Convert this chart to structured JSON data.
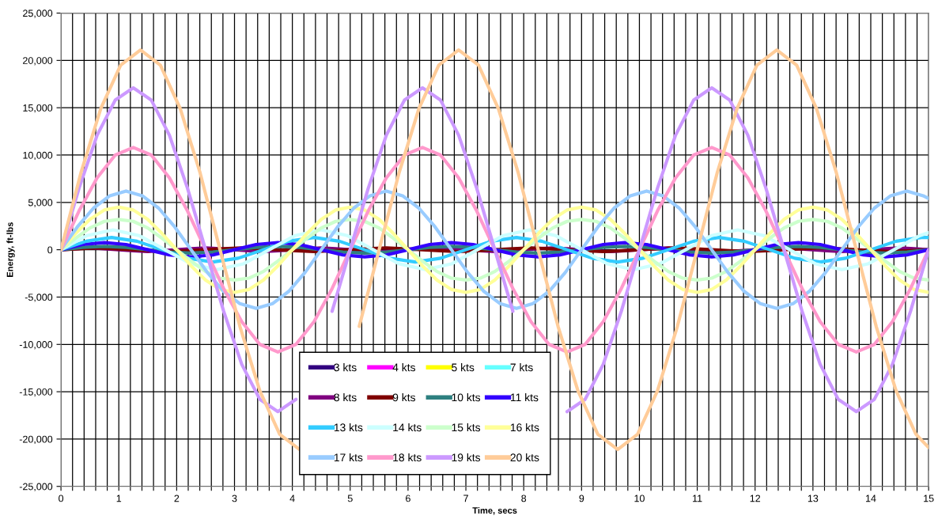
{
  "chart_data": {
    "type": "line",
    "xlabel": "Time, secs",
    "ylabel": "Energy, ft-lbs",
    "xlim": [
      0,
      15
    ],
    "ylim": [
      -25000,
      25000
    ],
    "xticks": [
      0,
      {
        "value": 0.2,
        "label": null
      },
      {
        "value": 0.4,
        "label": null
      },
      {
        "value": 0.6,
        "label": null
      },
      {
        "value": 0.8,
        "label": null
      },
      1,
      {
        "value": 1.2,
        "label": null
      },
      {
        "value": 1.4,
        "label": null
      },
      {
        "value": 1.6,
        "label": null
      },
      {
        "value": 1.8,
        "label": null
      },
      2,
      {
        "value": 2.2,
        "label": null
      },
      {
        "value": 2.4,
        "label": null
      },
      {
        "value": 2.6,
        "label": null
      },
      {
        "value": 2.8,
        "label": null
      },
      3,
      {
        "value": 3.2,
        "label": null
      },
      {
        "value": 3.4,
        "label": null
      },
      {
        "value": 3.6,
        "label": null
      },
      {
        "value": 3.8,
        "label": null
      },
      4,
      {
        "value": 4.2,
        "label": null
      },
      {
        "value": 4.4,
        "label": null
      },
      {
        "value": 4.6,
        "label": null
      },
      {
        "value": 4.8,
        "label": null
      },
      5,
      {
        "value": 5.2,
        "label": null
      },
      {
        "value": 5.4,
        "label": null
      },
      {
        "value": 5.6,
        "label": null
      },
      {
        "value": 5.8,
        "label": null
      },
      6,
      {
        "value": 6.2,
        "label": null
      },
      {
        "value": 6.4,
        "label": null
      },
      {
        "value": 6.6,
        "label": null
      },
      {
        "value": 6.8,
        "label": null
      },
      7,
      {
        "value": 7.2,
        "label": null
      },
      {
        "value": 7.4,
        "label": null
      },
      {
        "value": 7.6,
        "label": null
      },
      {
        "value": 7.8,
        "label": null
      },
      8,
      {
        "value": 8.2,
        "label": null
      },
      {
        "value": 8.4,
        "label": null
      },
      {
        "value": 8.6,
        "label": null
      },
      {
        "value": 8.8,
        "label": null
      },
      9,
      {
        "value": 9.2,
        "label": null
      },
      {
        "value": 9.4,
        "label": null
      },
      {
        "value": 9.6,
        "label": null
      },
      {
        "value": 9.8,
        "label": null
      },
      10,
      {
        "value": 10.2,
        "label": null
      },
      {
        "value": 10.4,
        "label": null
      },
      {
        "value": 10.6,
        "label": null
      },
      {
        "value": 10.8,
        "label": null
      },
      11,
      {
        "value": 11.2,
        "label": null
      },
      {
        "value": 11.4,
        "label": null
      },
      {
        "value": 11.6,
        "label": null
      },
      {
        "value": 11.8,
        "label": null
      },
      12,
      {
        "value": 12.2,
        "label": null
      },
      {
        "value": 12.4,
        "label": null
      },
      {
        "value": 12.6,
        "label": null
      },
      {
        "value": 12.8,
        "label": null
      },
      13,
      {
        "value": 13.2,
        "label": null
      },
      {
        "value": 13.4,
        "label": null
      },
      {
        "value": 13.6,
        "label": null
      },
      {
        "value": 13.8,
        "label": null
      },
      14,
      {
        "value": 14.2,
        "label": null
      },
      {
        "value": 14.4,
        "label": null
      },
      {
        "value": 14.6,
        "label": null
      },
      {
        "value": 14.8,
        "label": null
      },
      15
    ],
    "yticks": [
      {
        "value": -25000,
        "label": "-25,000"
      },
      {
        "value": -20000,
        "label": "-20,000"
      },
      {
        "value": -15000,
        "label": "-15,000"
      },
      {
        "value": -10000,
        "label": "-10,000"
      },
      {
        "value": -5000,
        "label": "-5,000"
      },
      0,
      {
        "value": 5000,
        "label": "5,000"
      },
      {
        "value": 10000,
        "label": "10,000"
      },
      {
        "value": 15000,
        "label": "15,000"
      },
      {
        "value": 20000,
        "label": "20,000"
      },
      {
        "value": 25000,
        "label": "25,000"
      }
    ],
    "grid": true,
    "legend": "bottom",
    "x": [
      0,
      0.25,
      0.5,
      0.75,
      1,
      1.25,
      1.5,
      1.75,
      2,
      2.25,
      2.5,
      2.75,
      3,
      3.25,
      3.5,
      3.75,
      4,
      4.25,
      4.5,
      4.75,
      5,
      5.25,
      5.5,
      5.75,
      6,
      6.25,
      6.5,
      6.75,
      7,
      7.25,
      7.5,
      7.75,
      8,
      8.25,
      8.5,
      8.75,
      9,
      9.25,
      9.5,
      9.75,
      10,
      10.25,
      10.5,
      10.75,
      11,
      11.25,
      11.5,
      11.75,
      12,
      12.25,
      12.5,
      12.75,
      13,
      13.25,
      13.5,
      13.75,
      14,
      14.25,
      14.5,
      14.75,
      15
    ],
    "series": [
      {
        "name": "3 kts",
        "color": "#330080",
        "values": [
          null,
          null,
          null,
          null,
          null,
          null,
          null,
          null,
          null,
          null,
          null,
          null,
          null,
          null,
          null,
          null,
          null,
          null,
          null,
          null,
          null,
          null,
          null,
          null,
          null,
          null,
          null,
          null,
          null,
          null,
          null,
          null,
          null,
          null,
          null,
          null,
          null,
          null,
          null,
          null,
          null,
          null,
          null,
          null,
          null,
          null,
          null,
          null,
          null,
          null,
          null,
          null,
          null,
          null,
          null,
          null,
          null,
          null,
          null,
          null,
          null
        ]
      },
      {
        "name": "4 kts",
        "color": "#ff00ff",
        "values": [
          null,
          null,
          null,
          null,
          null,
          null,
          null,
          null,
          null,
          null,
          null,
          null,
          null,
          null,
          null,
          null,
          null,
          null,
          null,
          null,
          null,
          null,
          null,
          null,
          null,
          null,
          null,
          null,
          null,
          null,
          null,
          null,
          null,
          null,
          null,
          null,
          null,
          null,
          null,
          null,
          null,
          null,
          null,
          null,
          null,
          null,
          null,
          null,
          null,
          null,
          null,
          null,
          null,
          null,
          null,
          null,
          null,
          null,
          null,
          null,
          null
        ]
      },
      {
        "name": "5 kts",
        "color": "#ffff00",
        "values": [
          null,
          null,
          null,
          null,
          null,
          null,
          null,
          null,
          null,
          null,
          null,
          null,
          null,
          null,
          null,
          null,
          null,
          null,
          null,
          null,
          null,
          null,
          null,
          null,
          null,
          null,
          null,
          null,
          null,
          null,
          null,
          null,
          null,
          null,
          null,
          null,
          null,
          null,
          null,
          null,
          null,
          null,
          null,
          null,
          null,
          null,
          null,
          null,
          null,
          null,
          null,
          null,
          null,
          null,
          null,
          null,
          null,
          null,
          null,
          null,
          null
        ]
      },
      {
        "name": "7 kts",
        "color": "#66ffff",
        "values": [
          null,
          null,
          null,
          null,
          null,
          null,
          null,
          null,
          null,
          null,
          null,
          null,
          null,
          null,
          null,
          null,
          null,
          null,
          null,
          null,
          null,
          null,
          null,
          null,
          null,
          null,
          null,
          null,
          null,
          null,
          null,
          null,
          null,
          null,
          null,
          null,
          null,
          null,
          null,
          null,
          null,
          null,
          null,
          null,
          null,
          null,
          null,
          null,
          null,
          null,
          null,
          null,
          null,
          null,
          null,
          null,
          null,
          null,
          null,
          null,
          null
        ]
      },
      {
        "name": "8 kts",
        "color": "#800080",
        "values": [
          0,
          100,
          200,
          100,
          0,
          -100,
          -200,
          -100,
          0,
          100,
          200,
          100,
          0,
          -100,
          -200,
          -100,
          0,
          100,
          200,
          100,
          0,
          -100,
          -200,
          -100,
          0,
          100,
          200,
          100,
          0,
          -100,
          -200,
          -100,
          0,
          100,
          200,
          100,
          0,
          -100,
          -200,
          -100,
          0,
          100,
          200,
          100,
          0,
          -100,
          -200,
          -100,
          0,
          100,
          200,
          100,
          0,
          -100,
          -200,
          -100,
          0,
          100,
          200,
          100,
          0
        ]
      },
      {
        "name": "9 kts",
        "color": "#800000",
        "x": [
          0,
          0.3125,
          0.625,
          0.9375,
          1.25,
          1.5625,
          1.875,
          2.1875,
          2.5,
          2.8125,
          3.125,
          3.4375,
          3.75,
          4.0625,
          4.375,
          4.6875,
          5,
          5.3125,
          5.625,
          5.9375,
          6.25,
          6.5625,
          6.875,
          7.1875,
          7.5,
          7.8125,
          8.125,
          8.4375,
          8.75,
          9.0625,
          9.375,
          9.6875,
          10,
          10.3125,
          10.625,
          10.9375,
          11.25,
          11.5625,
          11.875,
          12.1875,
          12.5,
          12.8125,
          13.125,
          13.4375,
          13.75,
          14.0625,
          14.375,
          14.6875,
          15
        ],
        "values": [
          0,
          100,
          200,
          100,
          0,
          -100,
          -200,
          -100,
          0,
          100,
          200,
          100,
          0,
          -100,
          -200,
          -100,
          0,
          100,
          200,
          100,
          0,
          -100,
          -200,
          -100,
          0,
          100,
          200,
          100,
          0,
          -100,
          -200,
          -100,
          0,
          100,
          200,
          100,
          0,
          -100,
          -200,
          -100,
          0,
          100,
          200,
          100,
          0,
          -100,
          -200,
          -100,
          0
        ]
      },
      {
        "name": "10 kts",
        "color": "#2e8080",
        "x": [
          0,
          0.375,
          0.75,
          1.125,
          1.5,
          1.875,
          2.25,
          2.625,
          3,
          3.375,
          3.75,
          4.125,
          4.5,
          4.875,
          5.25,
          5.625,
          6,
          6.375,
          6.75,
          7.125,
          7.5,
          7.875,
          8.25,
          8.625,
          9,
          9.375,
          9.75,
          10.125,
          10.5,
          10.875,
          11.25,
          11.625,
          12,
          12.375,
          12.75,
          13.125,
          13.5,
          13.875,
          14.25,
          14.625,
          15
        ],
        "values": [
          0,
          250,
          350,
          250,
          0,
          -250,
          -350,
          -250,
          0,
          250,
          350,
          250,
          0,
          -250,
          -350,
          -250,
          0,
          250,
          350,
          250,
          0,
          -250,
          -350,
          -250,
          0,
          250,
          350,
          250,
          0,
          -250,
          -350,
          -250,
          0,
          250,
          350,
          250,
          0,
          -250,
          -350,
          -250,
          0
        ]
      },
      {
        "name": "11 kts",
        "color": "#3300ff",
        "x": [
          0,
          0.375,
          0.75,
          1.125,
          1.5,
          1.875,
          2.25,
          2.625,
          3,
          3.375,
          3.75,
          4.125,
          4.5,
          4.875,
          5.25,
          5.625,
          6,
          6.375,
          6.75,
          7.125,
          7.5,
          7.875,
          8.25,
          8.625,
          9,
          9.375,
          9.75,
          10.125,
          10.5,
          10.875,
          11.25,
          11.625,
          12,
          12.375,
          12.75,
          13.125,
          13.5,
          13.875,
          14.25,
          14.625,
          15
        ],
        "values": [
          0,
          550,
          750,
          550,
          0,
          -550,
          -750,
          -550,
          0,
          550,
          750,
          550,
          0,
          -550,
          -750,
          -550,
          0,
          550,
          750,
          550,
          0,
          -550,
          -750,
          -550,
          0,
          550,
          750,
          550,
          0,
          -550,
          -750,
          -550,
          0,
          550,
          750,
          550,
          0,
          -550,
          -750,
          -550,
          0
        ]
      },
      {
        "name": "13 kts",
        "color": "#33ccff",
        "x": [
          0,
          0.4375,
          0.875,
          1.3125,
          1.75,
          2.1875,
          2.625,
          3.0625,
          3.5,
          3.9375,
          4.375,
          4.8125,
          5.25,
          5.6875,
          6.125,
          6.5625,
          7,
          7.4375,
          7.875,
          8.3125,
          8.75,
          9.1875,
          9.625,
          10.0625,
          10.5,
          10.9375,
          11.375,
          11.8125,
          12.25,
          12.6875,
          13.125,
          13.5625,
          14,
          14.4375,
          14.875,
          15
        ],
        "values": [
          0,
          900,
          1300,
          900,
          0,
          -900,
          -1300,
          -900,
          0,
          900,
          1300,
          900,
          0,
          -900,
          -1300,
          -900,
          0,
          900,
          1300,
          900,
          0,
          -900,
          -1300,
          -900,
          0,
          900,
          1300,
          900,
          0,
          -900,
          -1300,
          -900,
          0,
          900,
          1300,
          1300
        ]
      },
      {
        "name": "14 kts",
        "color": "#ccffff",
        "x": [
          0,
          0.45,
          0.9,
          1.35,
          1.8,
          2.25,
          2.7,
          3.15,
          3.6,
          4.05,
          4.5,
          4.95,
          5.4,
          5.85,
          6.3,
          6.75,
          7.2,
          7.65,
          8.1,
          8.55,
          9,
          9.45,
          9.9,
          10.35,
          10.8,
          11.25,
          11.7,
          12.15,
          12.6,
          13.05,
          13.5,
          13.95,
          14.4,
          14.85,
          15
        ],
        "values": [
          0,
          1500,
          2100,
          1500,
          0,
          -1500,
          -2100,
          -1500,
          0,
          1500,
          2100,
          1500,
          0,
          -1500,
          -2100,
          -1500,
          0,
          1500,
          2100,
          1500,
          0,
          -1500,
          -2100,
          -1500,
          0,
          1500,
          2100,
          1500,
          0,
          -1500,
          -2100,
          -1500,
          0,
          1500,
          1800
        ]
      },
      {
        "name": "15 kts",
        "color": "#ccffcc",
        "values": [
          0,
          1200,
          2300,
          3000,
          3200,
          3000,
          2300,
          1200,
          0,
          -1200,
          -2300,
          -3000,
          -3200,
          -3000,
          -2300,
          -1200,
          0,
          1200,
          2300,
          3000,
          3200,
          3000,
          2300,
          1200,
          0,
          -1200,
          -2300,
          -3000,
          -3200,
          -3000,
          -2300,
          -1200,
          0,
          1200,
          2300,
          3000,
          3200,
          3000,
          2300,
          1200,
          0,
          -1200,
          -2300,
          -3000,
          -3200,
          -3000,
          -2300,
          -1200,
          0,
          1200,
          2300,
          3000,
          3200,
          3000,
          2300,
          1200,
          0,
          -1200,
          -2300,
          -3000,
          -3200
        ]
      },
      {
        "name": "16 kts",
        "color": "#ffff99",
        "values": [
          0,
          1700,
          3200,
          4200,
          4500,
          4200,
          3200,
          1700,
          0,
          -1700,
          -3200,
          -4200,
          -4500,
          -4200,
          -3200,
          -1700,
          0,
          1700,
          3200,
          4200,
          4500,
          4200,
          3200,
          1700,
          0,
          -1700,
          -3200,
          -4200,
          -4500,
          -4200,
          -3200,
          -1700,
          0,
          1700,
          3200,
          4200,
          4500,
          4200,
          3200,
          1700,
          0,
          -1700,
          -3200,
          -4200,
          -4500,
          -4200,
          -3200,
          -1700,
          0,
          1700,
          3200,
          4200,
          4500,
          4200,
          3200,
          1700,
          0,
          -1700,
          -3200,
          -4200,
          -4500
        ]
      },
      {
        "name": "17 kts",
        "color": "#99ccff",
        "x": [
          0,
          0.28125,
          0.5625,
          0.84375,
          1.125,
          1.40625,
          1.6875,
          1.96875,
          2.25,
          2.53125,
          2.8125,
          3.09375,
          3.375,
          3.65625,
          3.9375,
          4.21875,
          4.5,
          4.78125,
          5.0625,
          5.34375,
          5.625,
          5.90625,
          6.1875,
          6.46875,
          6.75,
          7.03125,
          7.3125,
          7.59375,
          7.875,
          8.15625,
          8.4375,
          8.71875,
          9,
          9.28125,
          9.5625,
          9.84375,
          10.125,
          10.40625,
          10.6875,
          10.96875,
          11.25,
          11.53125,
          11.8125,
          12.09375,
          12.375,
          12.65625,
          12.9375,
          13.21875,
          13.5,
          13.78125,
          14.0625,
          14.34375,
          14.625,
          14.90625,
          15
        ],
        "values": [
          0,
          2400,
          4400,
          5700,
          6200,
          5700,
          4400,
          2400,
          0,
          -2400,
          -4400,
          -5700,
          -6200,
          -5700,
          -4400,
          -2400,
          0,
          2400,
          4400,
          5700,
          6200,
          5700,
          4400,
          2400,
          0,
          -2400,
          -4400,
          -5700,
          -6200,
          -5700,
          -4400,
          -2400,
          0,
          2400,
          4400,
          5700,
          6200,
          5700,
          4400,
          2400,
          0,
          -2400,
          -4400,
          -5700,
          -6200,
          -5700,
          -4400,
          -2400,
          0,
          2400,
          4400,
          5700,
          6200,
          5700,
          5400
        ]
      },
      {
        "name": "18 kts",
        "color": "#ff99cc",
        "x": [
          0,
          0.3125,
          0.625,
          0.9375,
          1.25,
          1.5625,
          1.875,
          2.1875,
          2.5,
          2.8125,
          3.125,
          3.4375,
          3.75,
          4.0625,
          4.375,
          4.6875,
          5,
          5.3125,
          5.625,
          5.9375,
          6.25,
          6.5625,
          6.875,
          7.1875,
          7.5,
          7.8125,
          8.125,
          8.4375,
          8.75,
          9.0625,
          9.375,
          9.6875,
          10,
          10.3125,
          10.625,
          10.9375,
          11.25,
          11.5625,
          11.875,
          12.1875,
          12.5,
          12.8125,
          13.125,
          13.4375,
          13.75,
          14.0625,
          14.375,
          14.6875,
          15
        ],
        "values": [
          0,
          4100,
          7600,
          10000,
          10800,
          10000,
          7600,
          4100,
          0,
          -4100,
          -7600,
          -10000,
          -10800,
          -10000,
          -7600,
          -4100,
          0,
          4100,
          7600,
          10000,
          10800,
          10000,
          7600,
          4100,
          0,
          -4100,
          -7600,
          -10000,
          -10800,
          -10000,
          -7600,
          -4100,
          0,
          4100,
          7600,
          10000,
          10800,
          10000,
          7600,
          4100,
          0,
          -4100,
          -7600,
          -10000,
          -10800,
          -10000,
          -7600,
          -4100,
          0
        ]
      },
      {
        "name": "19 kts",
        "color": "#cc99ff",
        "x": [
          0,
          0.3125,
          0.625,
          0.9375,
          1.25,
          1.5625,
          1.875,
          2.1875,
          2.5,
          2.8125,
          3.125,
          3.4375,
          3.75,
          4.0625,
          4.375,
          4.6875,
          5,
          5.3125,
          5.625,
          5.9375,
          6.25,
          6.5625,
          6.875,
          7.1875,
          7.5,
          7.8125,
          8.125,
          8.4375,
          8.75,
          9.0625,
          9.375,
          9.6875,
          10,
          10.3125,
          10.625,
          10.9375,
          11.25,
          11.5625,
          11.875,
          12.1875,
          12.5,
          12.8125,
          13.125,
          13.4375,
          13.75,
          14.0625,
          14.375,
          14.6875,
          15
        ],
        "values": [
          0,
          6500,
          12100,
          15800,
          17100,
          15800,
          12100,
          6500,
          0,
          -6500,
          -12100,
          -15800,
          -17100,
          -15800,
          null,
          -6500,
          0,
          6500,
          12100,
          15800,
          17100,
          15800,
          12100,
          6500,
          0,
          -6500,
          null,
          null,
          -17100,
          -15800,
          -12100,
          -6500,
          0,
          6500,
          12100,
          15800,
          17100,
          15800,
          12100,
          6500,
          0,
          -6500,
          -12100,
          -15800,
          -17100,
          -15800,
          -12100,
          -6500,
          0
        ]
      },
      {
        "name": "20 kts",
        "color": "#ffcc99",
        "x": [
          0,
          0.34375,
          0.6875,
          1.03125,
          1.375,
          1.71875,
          2.0625,
          2.40625,
          2.75,
          3.09375,
          3.4375,
          3.78125,
          4.125,
          4.46875,
          4.8125,
          5.15625,
          5.5,
          5.84375,
          6.1875,
          6.53125,
          6.875,
          7.21875,
          7.5625,
          7.90625,
          8.25,
          8.59375,
          8.9375,
          9.28125,
          9.625,
          9.96875,
          10.3125,
          10.65625,
          11,
          11.34375,
          11.6875,
          12.03125,
          12.375,
          12.71875,
          13.0625,
          13.40625,
          13.75,
          14.09375,
          14.4375,
          14.78125,
          15
        ],
        "values": [
          0,
          8100,
          14900,
          19500,
          21100,
          19500,
          14900,
          8100,
          0,
          -8100,
          -14900,
          -19500,
          -21100,
          null,
          null,
          -8100,
          0,
          8100,
          14900,
          19500,
          21100,
          19500,
          14900,
          8100,
          0,
          -8100,
          -14900,
          -19500,
          -21100,
          -19500,
          -14900,
          -8100,
          0,
          8100,
          14900,
          19500,
          21100,
          19500,
          14900,
          8100,
          0,
          -8100,
          -14900,
          -19500,
          -20900
        ]
      }
    ]
  }
}
